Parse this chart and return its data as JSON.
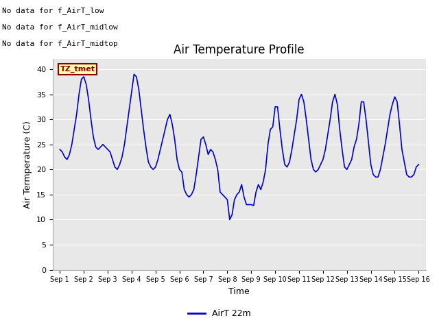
{
  "title": "Air Temperature Profile",
  "xlabel": "Time",
  "ylabel": "Air Termperature (C)",
  "legend_label": "AirT 22m",
  "annotations": [
    "No data for f_AirT_low",
    "No data for f_AirT_midlow",
    "No data for f_AirT_midtop"
  ],
  "tz_label": "TZ_tmet",
  "ylim": [
    0,
    42
  ],
  "yticks": [
    0,
    5,
    10,
    15,
    20,
    25,
    30,
    35,
    40
  ],
  "line_color": "#0000cc",
  "fig_facecolor": "#ffffff",
  "plot_facecolor": "#e8e8e8",
  "title_fontsize": 12,
  "axis_fontsize": 9,
  "annot_fontsize": 8,
  "time_points": [
    0.0,
    0.1,
    0.2,
    0.3,
    0.4,
    0.5,
    0.6,
    0.7,
    0.8,
    0.9,
    1.0,
    1.1,
    1.2,
    1.3,
    1.4,
    1.5,
    1.6,
    1.7,
    1.8,
    1.9,
    2.0,
    2.1,
    2.2,
    2.3,
    2.4,
    2.5,
    2.6,
    2.7,
    2.8,
    2.9,
    3.0,
    3.1,
    3.2,
    3.3,
    3.4,
    3.5,
    3.6,
    3.7,
    3.8,
    3.9,
    4.0,
    4.1,
    4.2,
    4.3,
    4.4,
    4.5,
    4.6,
    4.7,
    4.8,
    4.9,
    5.0,
    5.1,
    5.2,
    5.3,
    5.4,
    5.5,
    5.6,
    5.7,
    5.8,
    5.9,
    6.0,
    6.1,
    6.2,
    6.3,
    6.4,
    6.5,
    6.6,
    6.7,
    6.8,
    6.9,
    7.0,
    7.1,
    7.2,
    7.3,
    7.4,
    7.5,
    7.6,
    7.7,
    7.8,
    7.9,
    8.0,
    8.1,
    8.2,
    8.3,
    8.4,
    8.5,
    8.6,
    8.7,
    8.8,
    8.9,
    9.0,
    9.1,
    9.2,
    9.3,
    9.4,
    9.5,
    9.6,
    9.7,
    9.8,
    9.9,
    10.0,
    10.1,
    10.2,
    10.3,
    10.4,
    10.5,
    10.6,
    10.7,
    10.8,
    10.9,
    11.0,
    11.1,
    11.2,
    11.3,
    11.4,
    11.5,
    11.6,
    11.7,
    11.8,
    11.9,
    12.0,
    12.1,
    12.2,
    12.3,
    12.4,
    12.5,
    12.6,
    12.7,
    12.8,
    12.9,
    13.0,
    13.1,
    13.2,
    13.3,
    13.4,
    13.5,
    13.6,
    13.7,
    13.8,
    13.9,
    14.0,
    14.1,
    14.2,
    14.3,
    14.4,
    14.5,
    14.6,
    14.7,
    14.8,
    14.9,
    15.0
  ],
  "temp_values": [
    24.0,
    23.5,
    22.5,
    22.0,
    23.0,
    25.0,
    28.0,
    31.0,
    35.0,
    38.0,
    38.5,
    37.0,
    34.0,
    30.0,
    26.5,
    24.5,
    24.0,
    24.5,
    25.0,
    24.5,
    24.0,
    23.5,
    22.0,
    20.5,
    20.0,
    21.0,
    22.5,
    25.0,
    28.5,
    32.0,
    35.5,
    39.0,
    38.5,
    36.0,
    32.0,
    28.0,
    24.5,
    21.5,
    20.5,
    20.0,
    20.5,
    22.0,
    24.0,
    26.0,
    28.0,
    30.0,
    31.0,
    29.0,
    26.0,
    22.0,
    20.0,
    19.5,
    16.0,
    15.0,
    14.5,
    15.0,
    16.0,
    19.0,
    22.5,
    26.0,
    26.5,
    25.0,
    23.0,
    24.0,
    23.5,
    22.0,
    20.0,
    15.5,
    15.0,
    14.5,
    14.0,
    10.0,
    11.0,
    14.0,
    15.0,
    15.5,
    17.0,
    14.5,
    13.0,
    13.0,
    13.0,
    12.8,
    15.5,
    17.0,
    16.0,
    17.5,
    20.0,
    25.0,
    28.0,
    28.5,
    32.5,
    32.5,
    28.0,
    24.0,
    21.0,
    20.5,
    21.5,
    24.0,
    27.0,
    30.0,
    34.0,
    35.0,
    33.5,
    30.0,
    26.0,
    22.0,
    20.0,
    19.5,
    20.0,
    21.0,
    22.0,
    24.0,
    27.0,
    30.0,
    33.5,
    35.0,
    33.0,
    28.0,
    24.0,
    20.5,
    20.0,
    21.0,
    22.0,
    24.5,
    26.0,
    29.0,
    33.5,
    33.5,
    30.0,
    25.5,
    21.0,
    19.0,
    18.5,
    18.5,
    20.0,
    22.5,
    25.0,
    28.0,
    31.0,
    33.0,
    34.5,
    33.5,
    29.0,
    24.0,
    21.5,
    19.0,
    18.5,
    18.5,
    19.0,
    20.5,
    21.0
  ],
  "xtick_positions": [
    0,
    1,
    2,
    3,
    4,
    5,
    6,
    7,
    8,
    9,
    10,
    11,
    12,
    13,
    14,
    15
  ],
  "xtick_labels": [
    "Sep 1",
    "Sep 2",
    "Sep 3",
    "Sep 4",
    "Sep 5",
    "Sep 6",
    "Sep 7",
    "Sep 8",
    "Sep 9",
    "Sep 10",
    "Sep 11",
    "Sep 12",
    "Sep 13",
    "Sep 14",
    "Sep 15",
    "Sep 16"
  ]
}
